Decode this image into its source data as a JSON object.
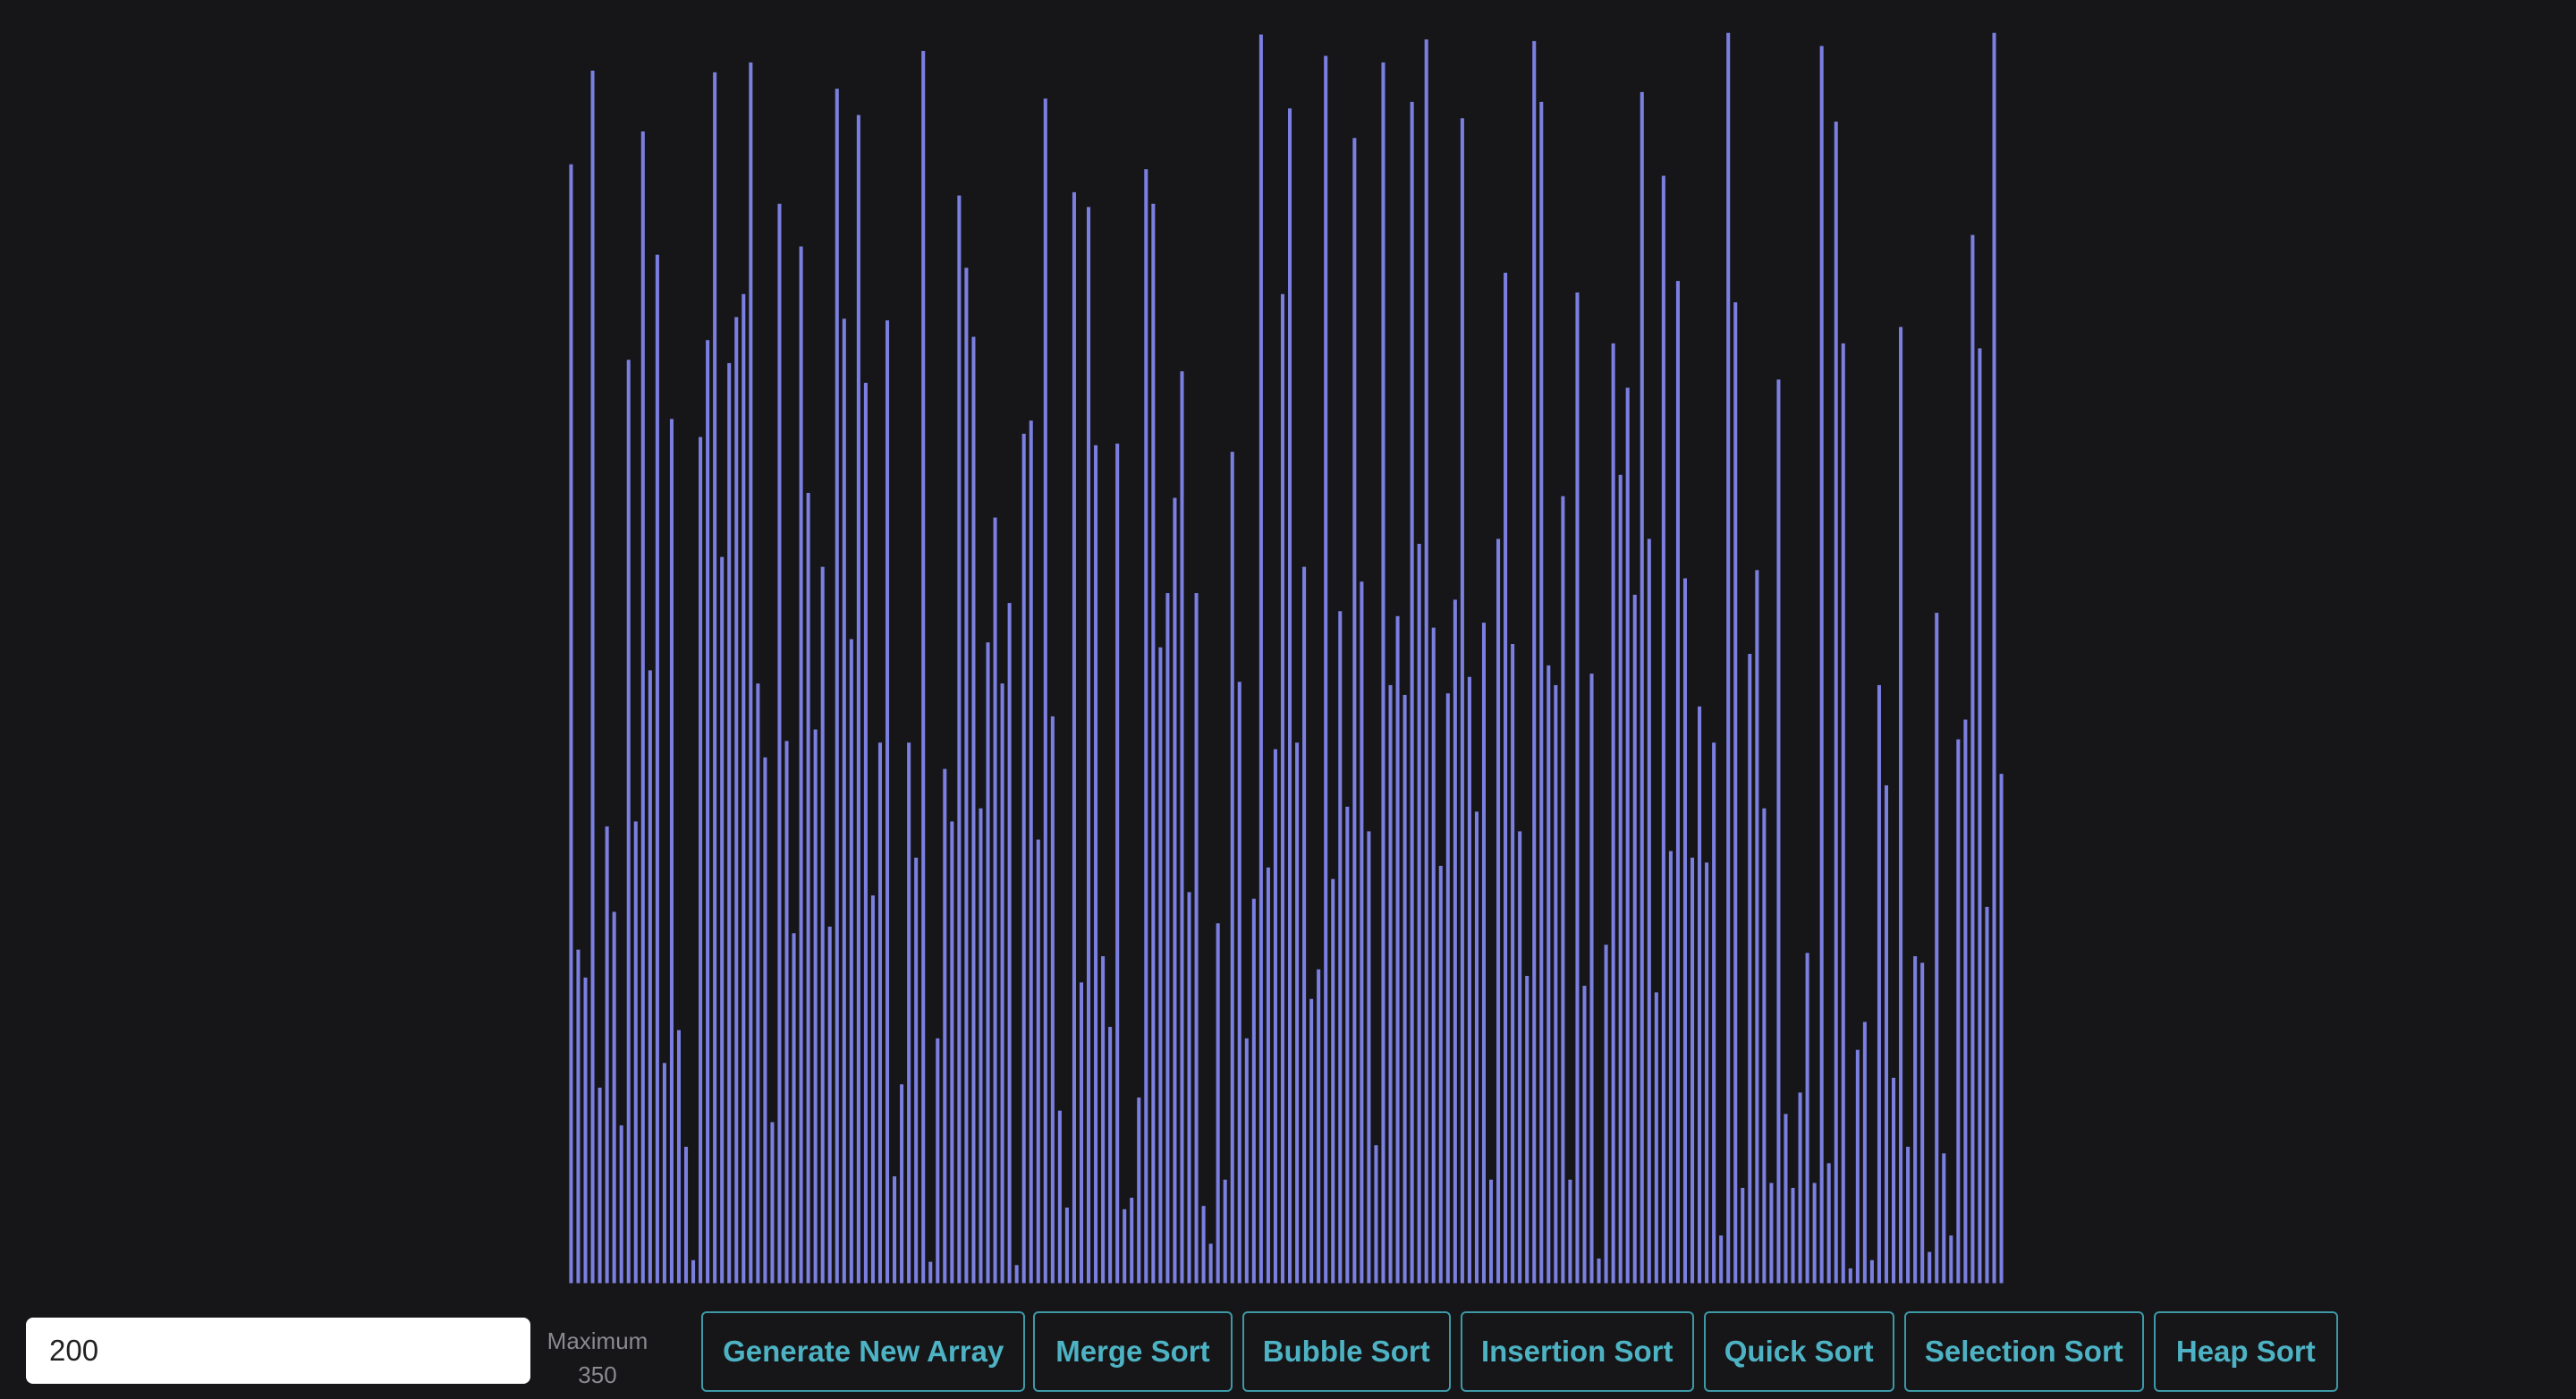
{
  "controls": {
    "array_size": 200,
    "max_label": "Maximum",
    "max_value": 350
  },
  "buttons": [
    "Generate New Array",
    "Merge Sort",
    "Bubble Sort",
    "Insertion Sort",
    "Quick Sort",
    "Selection Sort",
    "Heap Sort"
  ],
  "bars": [
    681,
    203,
    186,
    738,
    119,
    278,
    226,
    96,
    562,
    281,
    701,
    373,
    626,
    134,
    526,
    154,
    83,
    14,
    515,
    574,
    737,
    442,
    560,
    588,
    602,
    743,
    365,
    320,
    98,
    657,
    330,
    213,
    631,
    481,
    337,
    436,
    217,
    727,
    587,
    392,
    711,
    548,
    236,
    329,
    586,
    65,
    121,
    329,
    259,
    750,
    13,
    149,
    313,
    281,
    662,
    618,
    576,
    289,
    390,
    466,
    365,
    414,
    11,
    517,
    525,
    270,
    721,
    345,
    105,
    46,
    664,
    183,
    655,
    510,
    199,
    156,
    511,
    45,
    52,
    113,
    678,
    657,
    387,
    420,
    478,
    555,
    238,
    420,
    47,
    24,
    219,
    63,
    506,
    366,
    149,
    234,
    760,
    253,
    325,
    602,
    715,
    329,
    436,
    173,
    191,
    747,
    246,
    409,
    290,
    697,
    427,
    275,
    84,
    743,
    364,
    406,
    358,
    719,
    450,
    757,
    399,
    254,
    359,
    416,
    709,
    369,
    287,
    402,
    63,
    453,
    615,
    389,
    275,
    187,
    756,
    719,
    376,
    364,
    479,
    63,
    603,
    181,
    371,
    15,
    206,
    572,
    492,
    545,
    419,
    725,
    453,
    177,
    674,
    263,
    610,
    429,
    259,
    351,
    256,
    329,
    29,
    761,
    597,
    58,
    383,
    434,
    289,
    61,
    550,
    103,
    58,
    116,
    201,
    61,
    753,
    73,
    707,
    572,
    9,
    142,
    159,
    14,
    364,
    303,
    125,
    582,
    83,
    199,
    195,
    19,
    408,
    79,
    29,
    331,
    343,
    638,
    569,
    229,
    761,
    310
  ]
}
